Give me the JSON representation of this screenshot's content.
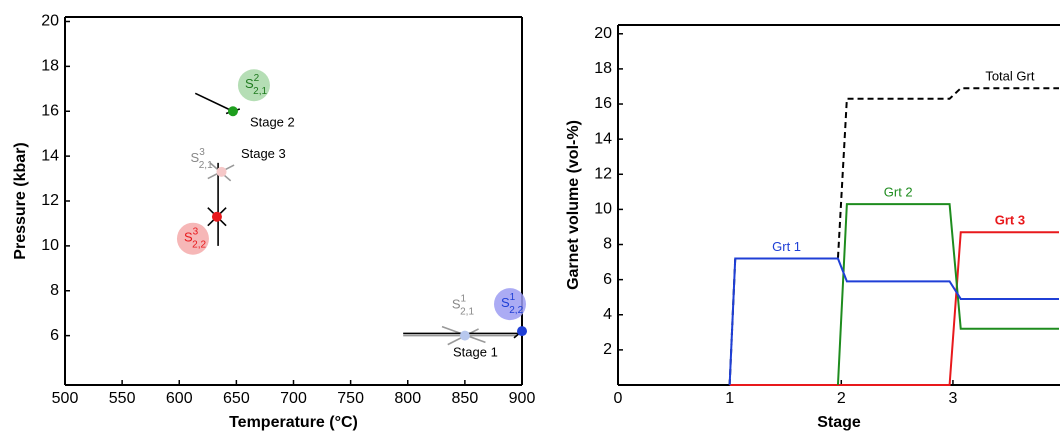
{
  "chart_data": [
    {
      "type": "scatter",
      "xlabel": "Temperature (°C)",
      "ylabel": "Pressure (kbar)",
      "xlim": [
        500,
        900
      ],
      "ylim": [
        3.8,
        20.2
      ],
      "xticks": [
        500,
        550,
        600,
        650,
        700,
        750,
        800,
        850,
        900
      ],
      "yticks": [
        6,
        8,
        10,
        12,
        14,
        16,
        18,
        20
      ],
      "points": [
        {
          "x": 850,
          "y": 6.0,
          "color": "#b8c8ee",
          "line_color": "#999999",
          "lines": [
            [
              796,
              6.0,
              895,
              6.0
            ],
            [
              830,
              6.4,
              868,
              5.7
            ],
            [
              835,
              5.6,
              862,
              6.3
            ]
          ],
          "badge": {
            "base": "S",
            "sup": "1",
            "sub": "2,1"
          },
          "badge_text": "#888888"
        },
        {
          "x": 900,
          "y": 6.2,
          "color": "#1f3fd6",
          "line_color": "#000000",
          "lines": [
            [
              796,
              6.1,
              900,
              6.1
            ],
            [
              893,
              5.9,
              900,
              6.2
            ]
          ],
          "label": "Stage 1",
          "badge": {
            "base": "S",
            "sup": "1",
            "sub": "2,2"
          },
          "badge_fill": "#9c9cf2",
          "badge_text": "#1f3fd6"
        },
        {
          "x": 647,
          "y": 16.0,
          "color": "#1e9e1e",
          "line_color": "#000000",
          "lines": [
            [
              614,
              16.8,
              647,
              16.0
            ],
            [
              641,
              15.9,
              653,
              16.1
            ]
          ],
          "label": "Stage 2",
          "badge": {
            "base": "S",
            "sup": "2",
            "sub": "2,1"
          },
          "badge_fill": "#a8d8a8",
          "badge_text": "#1e7a1e"
        },
        {
          "x": 637,
          "y": 13.3,
          "color": "#f5c8c8",
          "line_color": "#999999",
          "lines": [
            [
              625,
              13.0,
              648,
              13.6
            ],
            [
              627,
              13.7,
              645,
              12.9
            ]
          ],
          "badge": {
            "base": "S",
            "sup": "3",
            "sub": "2,1"
          },
          "badge_text": "#888888"
        },
        {
          "x": 633,
          "y": 11.3,
          "color": "#e8191c",
          "line_color": "#000000",
          "lines": [
            [
              634,
              10.0,
              634,
              13.7
            ],
            [
              625,
              11.7,
              641,
              10.9
            ],
            [
              625,
              10.9,
              641,
              11.7
            ]
          ],
          "label": "Stage 3",
          "badge": {
            "base": "S",
            "sup": "3",
            "sub": "2,2"
          },
          "badge_fill": "#f5aaaa",
          "badge_text": "#e8191c"
        }
      ]
    },
    {
      "type": "line",
      "xlabel": "Stage",
      "ylabel": "Garnet volume (vol-%)",
      "xlim": [
        0,
        3.95
      ],
      "ylim": [
        0,
        20.5
      ],
      "xticks": [
        0,
        1,
        2,
        3
      ],
      "yticks": [
        2,
        4,
        6,
        8,
        10,
        12,
        14,
        16,
        18,
        20
      ],
      "x": [
        1,
        1.05,
        1.97,
        2.05,
        2.97,
        3.07,
        3.95
      ],
      "series": [
        {
          "name": "Total Grt",
          "color": "#000000",
          "dashed": true,
          "values": [
            0,
            7.2,
            7.2,
            16.3,
            16.3,
            16.9,
            16.9
          ]
        },
        {
          "name": "Grt 3",
          "color": "#e8191c",
          "bold": true,
          "values": [
            0,
            0,
            0,
            0,
            0,
            8.7,
            8.7
          ]
        },
        {
          "name": "Grt 2",
          "color": "#1e8c1e",
          "values": [
            null,
            null,
            0,
            10.3,
            10.3,
            3.2,
            3.2
          ]
        },
        {
          "name": "Grt 1",
          "color": "#1f3fd6",
          "values": [
            0,
            7.2,
            7.2,
            5.9,
            5.9,
            4.9,
            4.9
          ]
        }
      ]
    }
  ]
}
